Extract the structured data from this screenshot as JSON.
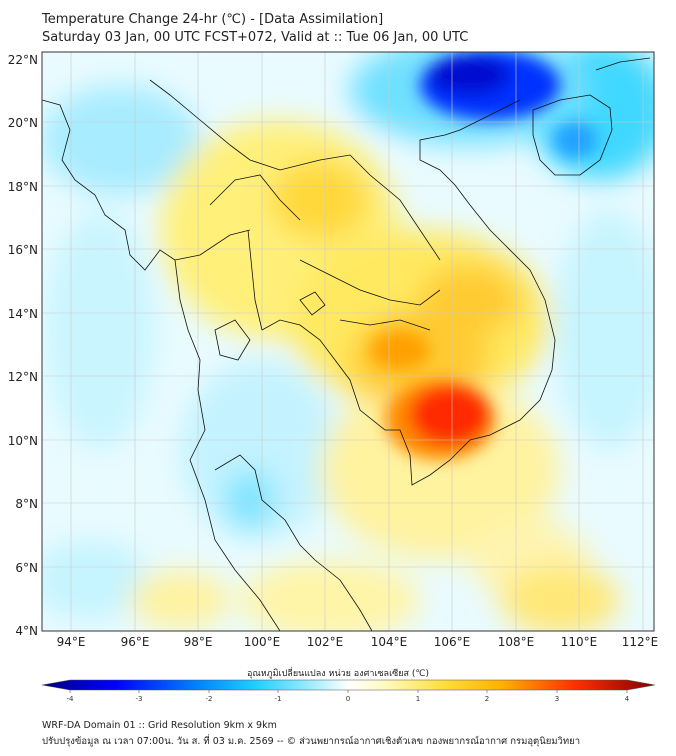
{
  "header": {
    "title_line1": "Temperature Change 24-hr (℃) - [Data Assimilation]",
    "title_line2": "Saturday 03 Jan, 00 UTC FCST+072, Valid at :: Tue 06 Jan, 00 UTC"
  },
  "map": {
    "lat_labels": [
      "22°N",
      "20°N",
      "18°N",
      "16°N",
      "14°N",
      "12°N",
      "10°N",
      "8°N",
      "6°N",
      "4°N"
    ],
    "lon_labels": [
      "94°E",
      "96°E",
      "98°E",
      "100°E",
      "102°E",
      "104°E",
      "106°E",
      "108°E",
      "110°E",
      "112°E"
    ]
  },
  "colorbar": {
    "label": "อุณหภูมิเปลี่ยนแปลง หน่วย องศาเซลเซียส (℃)",
    "ticks": [
      "-4",
      "-3",
      "-2",
      "-1",
      "0",
      "1",
      "2",
      "3",
      "4"
    ],
    "min": -4,
    "max": 4,
    "colors": [
      "#00007f",
      "#0040ff",
      "#00b0ff",
      "#40e0ff",
      "#c0f4ff",
      "#ffffff",
      "#ffff99",
      "#ffd020",
      "#ff9000",
      "#ff2000",
      "#7f0000"
    ]
  },
  "footer": {
    "line1": "WRF-DA Domain 01 :: Grid Resolution 9km x 9km",
    "line2": "ปรับปรุงข้อมูล ณ เวลา 07:00น. วัน ส. ที่ 03 ม.ค. 2569 -- © ส่วนพยากรณ์อากาศเชิงตัวเลข กองพยากรณ์อากาศ กรมอุตุนิยมวิทยา"
  }
}
